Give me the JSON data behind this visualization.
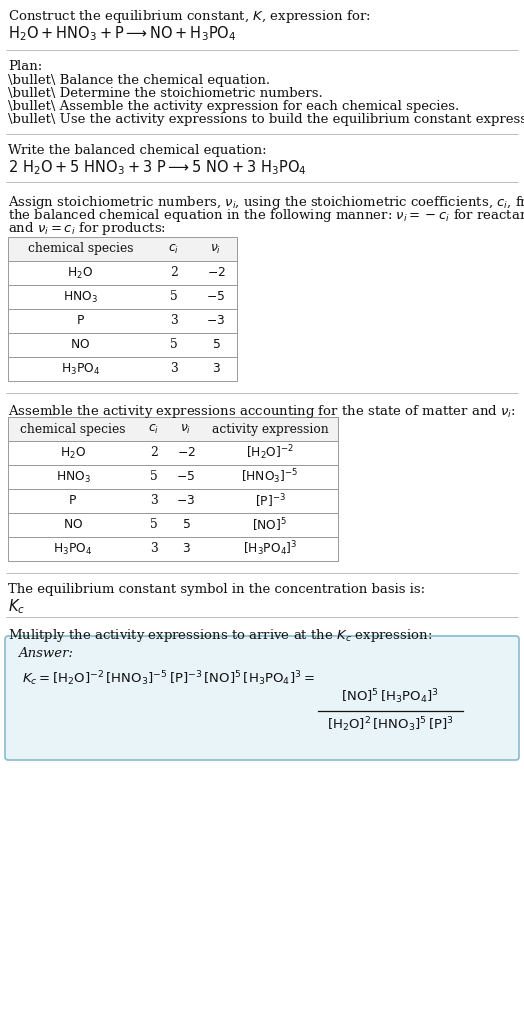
{
  "bg_color": "#ffffff",
  "text_color": "#111111",
  "table_border_color": "#999999",
  "table_header_bg": "#f2f2f2",
  "answer_box_bg": "#e8f4f8",
  "answer_box_border": "#88bbcc",
  "sep_line_color": "#bbbbbb",
  "fs": 9.5,
  "fs_math": 10.5,
  "fs_small": 8.8,
  "sec1_line1": "Construct the equilibrium constant, $K$, expression for:",
  "sec1_line2_parts": [
    "$\\mathrm{H_2O + HNO_3 + P \\longrightarrow NO + H_3PO_4}$"
  ],
  "plan_header": "Plan:",
  "plan_items": [
    "\\bullet\\ Balance the chemical equation.",
    "\\bullet\\ Determine the stoichiometric numbers.",
    "\\bullet\\ Assemble the activity expression for each chemical species.",
    "\\bullet\\ Use the activity expressions to build the equilibrium constant expression."
  ],
  "bal_header": "Write the balanced chemical equation:",
  "bal_eq": "$\\mathrm{2\\ H_2O + 5\\ HNO_3 + 3\\ P \\longrightarrow 5\\ NO + 3\\ H_3PO_4}$",
  "stoich_para": [
    "Assign stoichiometric numbers, $\\nu_i$, using the stoichiometric coefficients, $c_i$, from",
    "the balanced chemical equation in the following manner: $\\nu_i = -c_i$ for reactants",
    "and $\\nu_i = c_i$ for products:"
  ],
  "t1_header": [
    "chemical species",
    "$c_i$",
    "$\\nu_i$"
  ],
  "t1_rows": [
    [
      "$\\mathrm{H_2O}$",
      "2",
      "$-2$"
    ],
    [
      "$\\mathrm{HNO_3}$",
      "5",
      "$-5$"
    ],
    [
      "$\\mathrm{P}$",
      "3",
      "$-3$"
    ],
    [
      "$\\mathrm{NO}$",
      "5",
      "$5$"
    ],
    [
      "$\\mathrm{H_3PO_4}$",
      "3",
      "$3$"
    ]
  ],
  "act_header": "Assemble the activity expressions accounting for the state of matter and $\\nu_i$:",
  "t2_header": [
    "chemical species",
    "$c_i$",
    "$\\nu_i$",
    "activity expression"
  ],
  "t2_rows": [
    [
      "$\\mathrm{H_2O}$",
      "2",
      "$-2$",
      "$[\\mathrm{H_2O}]^{-2}$"
    ],
    [
      "$\\mathrm{HNO_3}$",
      "5",
      "$-5$",
      "$[\\mathrm{HNO_3}]^{-5}$"
    ],
    [
      "$\\mathrm{P}$",
      "3",
      "$-3$",
      "$[\\mathrm{P}]^{-3}$"
    ],
    [
      "$\\mathrm{NO}$",
      "5",
      "$5$",
      "$[\\mathrm{NO}]^{5}$"
    ],
    [
      "$\\mathrm{H_3PO_4}$",
      "3",
      "$3$",
      "$[\\mathrm{H_3PO_4}]^{3}$"
    ]
  ],
  "kc_basis_header": "The equilibrium constant symbol in the concentration basis is:",
  "kc_symbol": "$K_c$",
  "mult_header": "Mulitply the activity expressions to arrive at the $K_c$ expression:",
  "answer_label": "Answer:",
  "answer_kc_line": "$K_c = [\\mathrm{H_2O}]^{-2}\\,[\\mathrm{HNO_3}]^{-5}\\,[\\mathrm{P}]^{-3}\\,[\\mathrm{NO}]^{5}\\,[\\mathrm{H_3PO_4}]^{3} =$",
  "answer_num": "$[\\mathrm{NO}]^5\\,[\\mathrm{H_3PO_4}]^3$",
  "answer_den": "$[\\mathrm{H_2O}]^2\\,[\\mathrm{HNO_3}]^5\\,[\\mathrm{P}]^3$"
}
